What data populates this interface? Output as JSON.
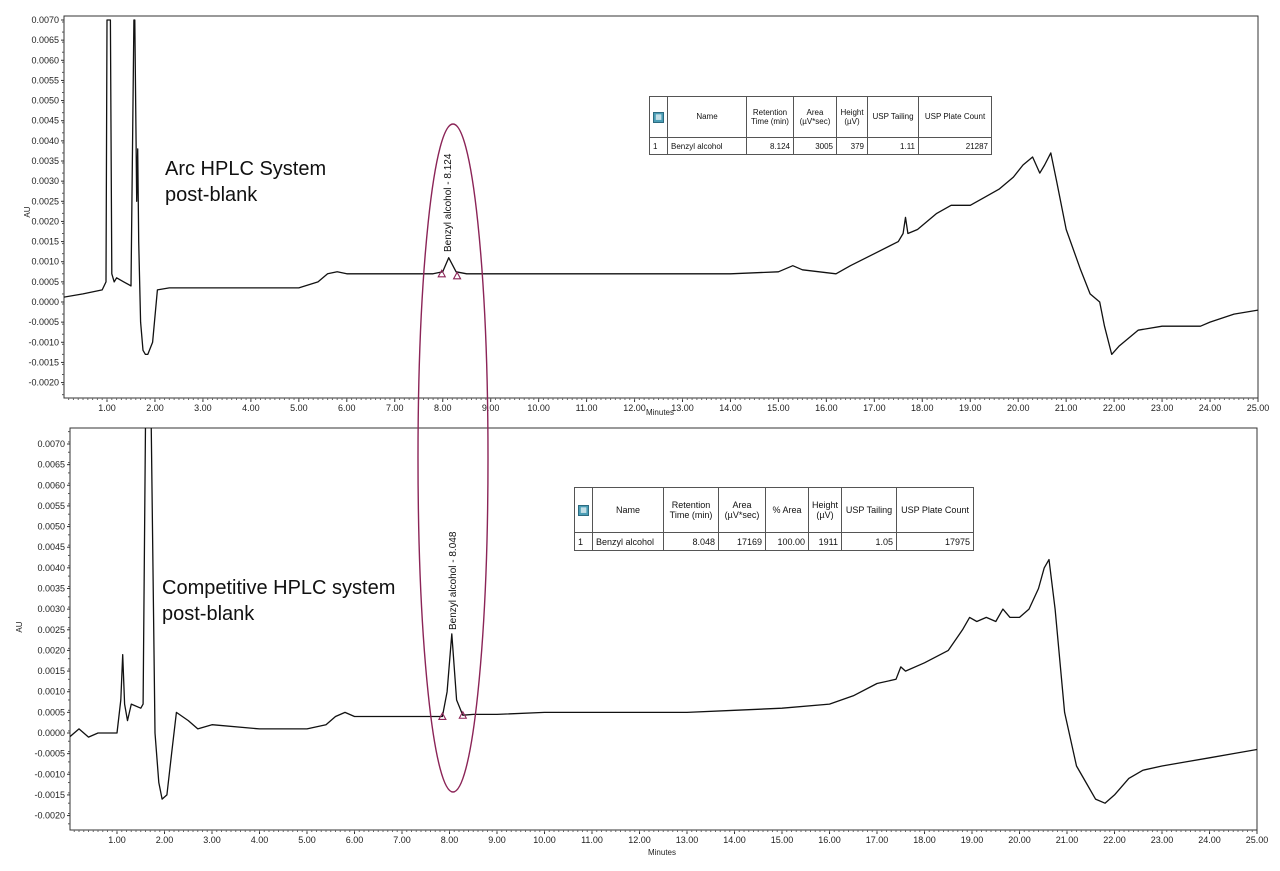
{
  "chart_data": [
    {
      "type": "line",
      "title": "",
      "xlabel": "Minutes",
      "ylabel": "AU",
      "xlim": [
        0,
        25
      ],
      "ylim": [
        -0.0023,
        0.007
      ],
      "x_ticks": [
        1,
        2,
        3,
        4,
        5,
        6,
        7,
        8,
        9,
        10,
        11,
        12,
        13,
        14,
        15,
        16,
        17,
        18,
        19,
        20,
        21,
        22,
        23,
        24,
        25
      ],
      "y_ticks": [
        0.007,
        0.0065,
        0.006,
        0.0055,
        0.005,
        0.0045,
        0.004,
        0.0035,
        0.003,
        0.0025,
        0.002,
        0.0015,
        0.001,
        0.0005,
        0,
        -0.0005,
        -0.001,
        -0.0015,
        -0.002
      ],
      "system_label": [
        "Arc HPLC System",
        "post-blank"
      ],
      "peak_label": "Benzyl alcohol - 8.124",
      "peak": {
        "x": 8.124,
        "y": 0.0011
      },
      "integration_marks": [
        {
          "x": 7.98,
          "y": 0.0007
        },
        {
          "x": 8.3,
          "y": 0.00065
        }
      ],
      "series": [
        {
          "x": [
            0,
            0.5,
            0.9,
            0.98,
            1.0,
            1.07,
            1.1,
            1.15,
            1.2,
            1.35,
            1.5,
            1.56,
            1.58,
            1.62,
            1.64,
            1.66,
            1.7,
            1.75,
            1.8,
            1.85,
            1.95,
            2.05,
            2.3,
            3,
            4,
            5,
            5.4,
            5.6,
            5.8,
            6,
            7,
            7.8,
            8.0,
            8.124,
            8.28,
            8.5,
            9,
            10,
            11,
            12,
            13,
            14,
            15,
            15.3,
            15.5,
            16.2,
            16.5,
            17,
            17.5,
            17.6,
            17.65,
            17.7,
            17.9,
            18.3,
            18.6,
            19,
            19.3,
            19.6,
            19.9,
            20.1,
            20.3,
            20.45,
            20.55,
            20.68,
            20.8,
            21.0,
            21.3,
            21.5,
            21.7,
            21.8,
            21.95,
            22.1,
            22.5,
            23,
            23.5,
            23.8,
            24.0,
            24.5,
            25
          ],
          "y": [
            0.0001,
            0.0002,
            0.0003,
            0.0005,
            0.007,
            0.007,
            0.0007,
            0.0005,
            0.0006,
            0.0005,
            0.0004,
            0.007,
            0.007,
            0.0025,
            0.0038,
            0.0015,
            -0.0005,
            -0.0012,
            -0.0013,
            -0.0013,
            -0.001,
            0.0003,
            0.00035,
            0.00035,
            0.00035,
            0.00035,
            0.0005,
            0.0007,
            0.00075,
            0.0007,
            0.0007,
            0.0007,
            0.00075,
            0.0011,
            0.00075,
            0.0007,
            0.0007,
            0.0007,
            0.0007,
            0.0007,
            0.0007,
            0.0007,
            0.00075,
            0.0009,
            0.0008,
            0.0007,
            0.0009,
            0.0012,
            0.0015,
            0.0017,
            0.0021,
            0.0017,
            0.0018,
            0.0022,
            0.0024,
            0.0024,
            0.0026,
            0.0028,
            0.0031,
            0.0034,
            0.0036,
            0.0032,
            0.0034,
            0.0037,
            0.003,
            0.0018,
            0.0008,
            0.0002,
            0,
            -0.0006,
            -0.0013,
            -0.0011,
            -0.0007,
            -0.0006,
            -0.0006,
            -0.0006,
            -0.0005,
            -0.0003,
            -0.0002
          ]
        }
      ]
    },
    {
      "type": "line",
      "title": "",
      "xlabel": "Minutes",
      "ylabel": "AU",
      "xlim": [
        0,
        25
      ],
      "ylim": [
        -0.0022,
        0.0075
      ],
      "x_ticks": [
        1,
        2,
        3,
        4,
        5,
        6,
        7,
        8,
        9,
        10,
        11,
        12,
        13,
        14,
        15,
        16,
        17,
        18,
        19,
        20,
        21,
        22,
        23,
        24,
        25
      ],
      "y_ticks": [
        0.007,
        0.0065,
        0.006,
        0.0055,
        0.005,
        0.0045,
        0.004,
        0.0035,
        0.003,
        0.0025,
        0.002,
        0.0015,
        0.001,
        0.0005,
        0,
        -0.0005,
        -0.001,
        -0.0015,
        -0.002
      ],
      "system_label": [
        "Competitive HPLC system",
        "post-blank"
      ],
      "peak_label": "Benzyl alcohol - 8.048",
      "peak": {
        "x": 8.048,
        "y": 0.0024
      },
      "integration_marks": [
        {
          "x": 7.85,
          "y": 0.0004
        },
        {
          "x": 8.28,
          "y": 0.00043
        }
      ],
      "series": [
        {
          "x": [
            0,
            0.2,
            0.4,
            0.6,
            0.8,
            1.0,
            1.08,
            1.12,
            1.16,
            1.22,
            1.3,
            1.5,
            1.55,
            1.6,
            1.64,
            1.68,
            1.72,
            1.8,
            1.88,
            1.95,
            2.05,
            2.15,
            2.25,
            2.5,
            2.7,
            3,
            4,
            5,
            5.4,
            5.6,
            5.8,
            6,
            7,
            7.85,
            7.95,
            8.048,
            8.15,
            8.28,
            8.5,
            9,
            10,
            11,
            12,
            13,
            14,
            15,
            16,
            16.5,
            17,
            17.4,
            17.5,
            17.6,
            18,
            18.5,
            18.8,
            18.95,
            19.1,
            19.3,
            19.5,
            19.65,
            19.8,
            20,
            20.2,
            20.4,
            20.52,
            20.62,
            20.75,
            20.95,
            21.2,
            21.4,
            21.6,
            21.8,
            22,
            22.3,
            22.6,
            23,
            23.5,
            24,
            24.5,
            25
          ],
          "y": [
            -0.0001,
            0.0001,
            -0.0001,
            0,
            0,
            0,
            0.0008,
            0.0019,
            0.0007,
            0.0003,
            0.0007,
            0.0006,
            0.0007,
            0.0075,
            0.0075,
            0.0075,
            0.0075,
            0,
            -0.0012,
            -0.0016,
            -0.0015,
            -0.0005,
            0.0005,
            0.0003,
            0.0001,
            0.0002,
            0.0001,
            0.0001,
            0.0002,
            0.0004,
            0.0005,
            0.0004,
            0.0004,
            0.0004,
            0.001,
            0.0024,
            0.0008,
            0.00043,
            0.00045,
            0.00045,
            0.0005,
            0.0005,
            0.0005,
            0.0005,
            0.00055,
            0.0006,
            0.0007,
            0.0009,
            0.0012,
            0.0013,
            0.0016,
            0.0015,
            0.0017,
            0.002,
            0.0025,
            0.0028,
            0.0027,
            0.0028,
            0.0027,
            0.003,
            0.0028,
            0.0028,
            0.003,
            0.0035,
            0.004,
            0.0042,
            0.003,
            0.0005,
            -0.0008,
            -0.0012,
            -0.0016,
            -0.0017,
            -0.0015,
            -0.0011,
            -0.0009,
            -0.0008,
            -0.0007,
            -0.0006,
            -0.0005,
            -0.0004
          ]
        }
      ]
    }
  ],
  "tables": {
    "top": {
      "headers": [
        "Name",
        "Retention Time (min)",
        "Area (µV*sec)",
        "Height (µV)",
        "USP Tailing",
        "USP Plate Count"
      ],
      "row": [
        "1",
        "Benzyl alcohol",
        "8.124",
        "3005",
        "379",
        "1.11",
        "21287"
      ]
    },
    "bottom": {
      "headers": [
        "Name",
        "Retention Time (min)",
        "Area (µV*sec)",
        "% Area",
        "Height (µV)",
        "USP Tailing",
        "USP Plate Count"
      ],
      "row": [
        "1",
        "Benzyl alcohol",
        "8.048",
        "17169",
        "100.00",
        "1911",
        "1.05",
        "17975"
      ]
    }
  },
  "icon": "table-grid-icon",
  "colors": {
    "trace": "#111111",
    "highlight_ellipse": "#8b2457",
    "integration_mark": "#8b2457"
  }
}
